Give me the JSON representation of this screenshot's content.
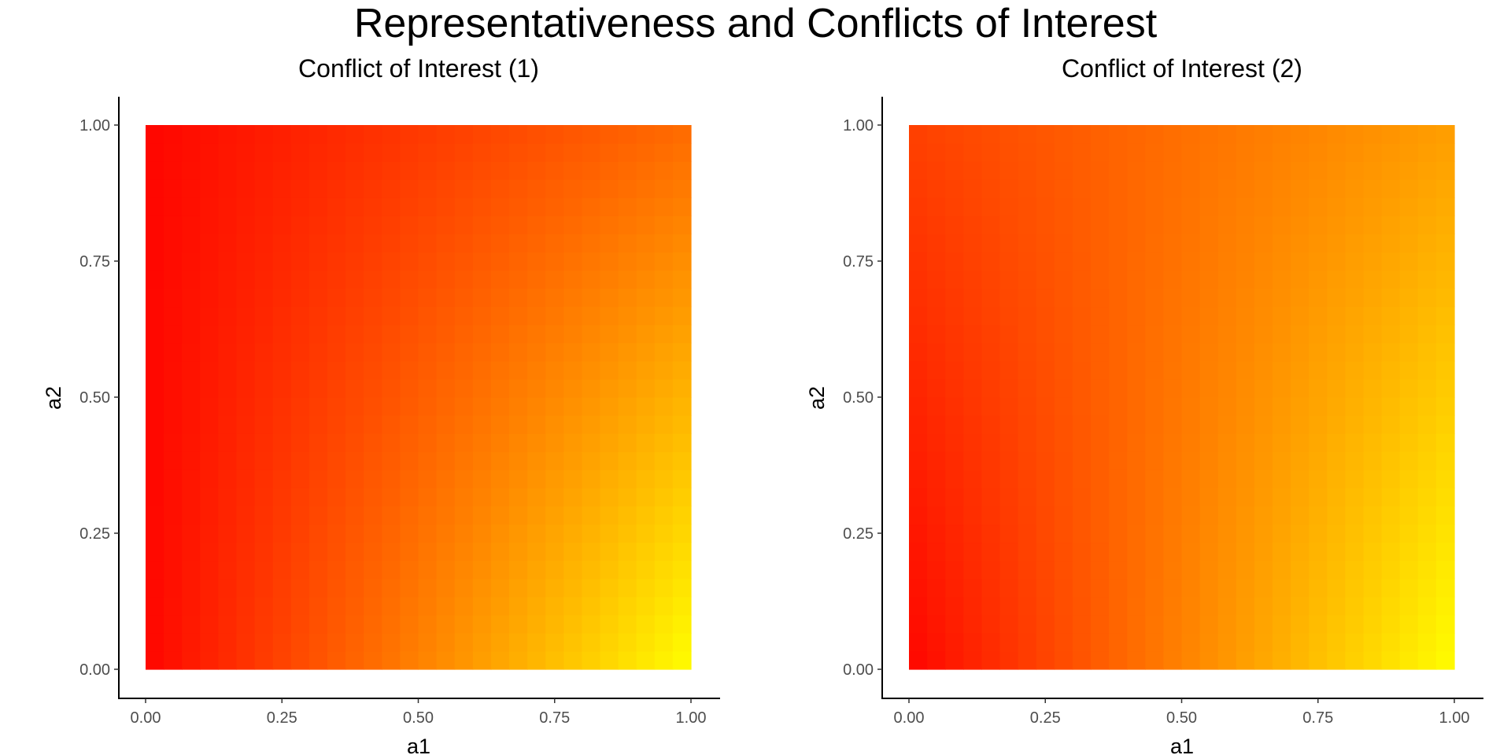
{
  "title": "Representativeness and Conflicts of Interest",
  "chart_data": [
    {
      "type": "heatmap",
      "title": "Conflict of Interest (1)",
      "xlabel": "a1",
      "ylabel": "a2",
      "xlim": [
        0,
        1
      ],
      "ylim": [
        0,
        1
      ],
      "xticks": [
        "0.00",
        "0.25",
        "0.50",
        "0.75",
        "1.00"
      ],
      "yticks": [
        "0.00",
        "0.25",
        "0.50",
        "0.75",
        "1.00"
      ],
      "grid": false,
      "legend": "none",
      "color_low": "#ff0000",
      "color_high": "#ffff00",
      "corner_values": {
        "a1_0_a2_0": 0.02,
        "a1_1_a2_0": 1.0,
        "a1_0_a2_1": 0.02,
        "a1_1_a2_1": 0.42
      }
    },
    {
      "type": "heatmap",
      "title": "Conflict of Interest (2)",
      "xlabel": "a1",
      "ylabel": "a2",
      "xlim": [
        0,
        1
      ],
      "ylim": [
        0,
        1
      ],
      "xticks": [
        "0.00",
        "0.25",
        "0.50",
        "0.75",
        "1.00"
      ],
      "yticks": [
        "0.00",
        "0.25",
        "0.50",
        "0.75",
        "1.00"
      ],
      "grid": false,
      "legend": "none",
      "color_low": "#ff0000",
      "color_high": "#ffff00",
      "corner_values": {
        "a1_0_a2_0": 0.02,
        "a1_1_a2_0": 1.0,
        "a1_0_a2_1": 0.25,
        "a1_1_a2_1": 0.62
      }
    }
  ]
}
